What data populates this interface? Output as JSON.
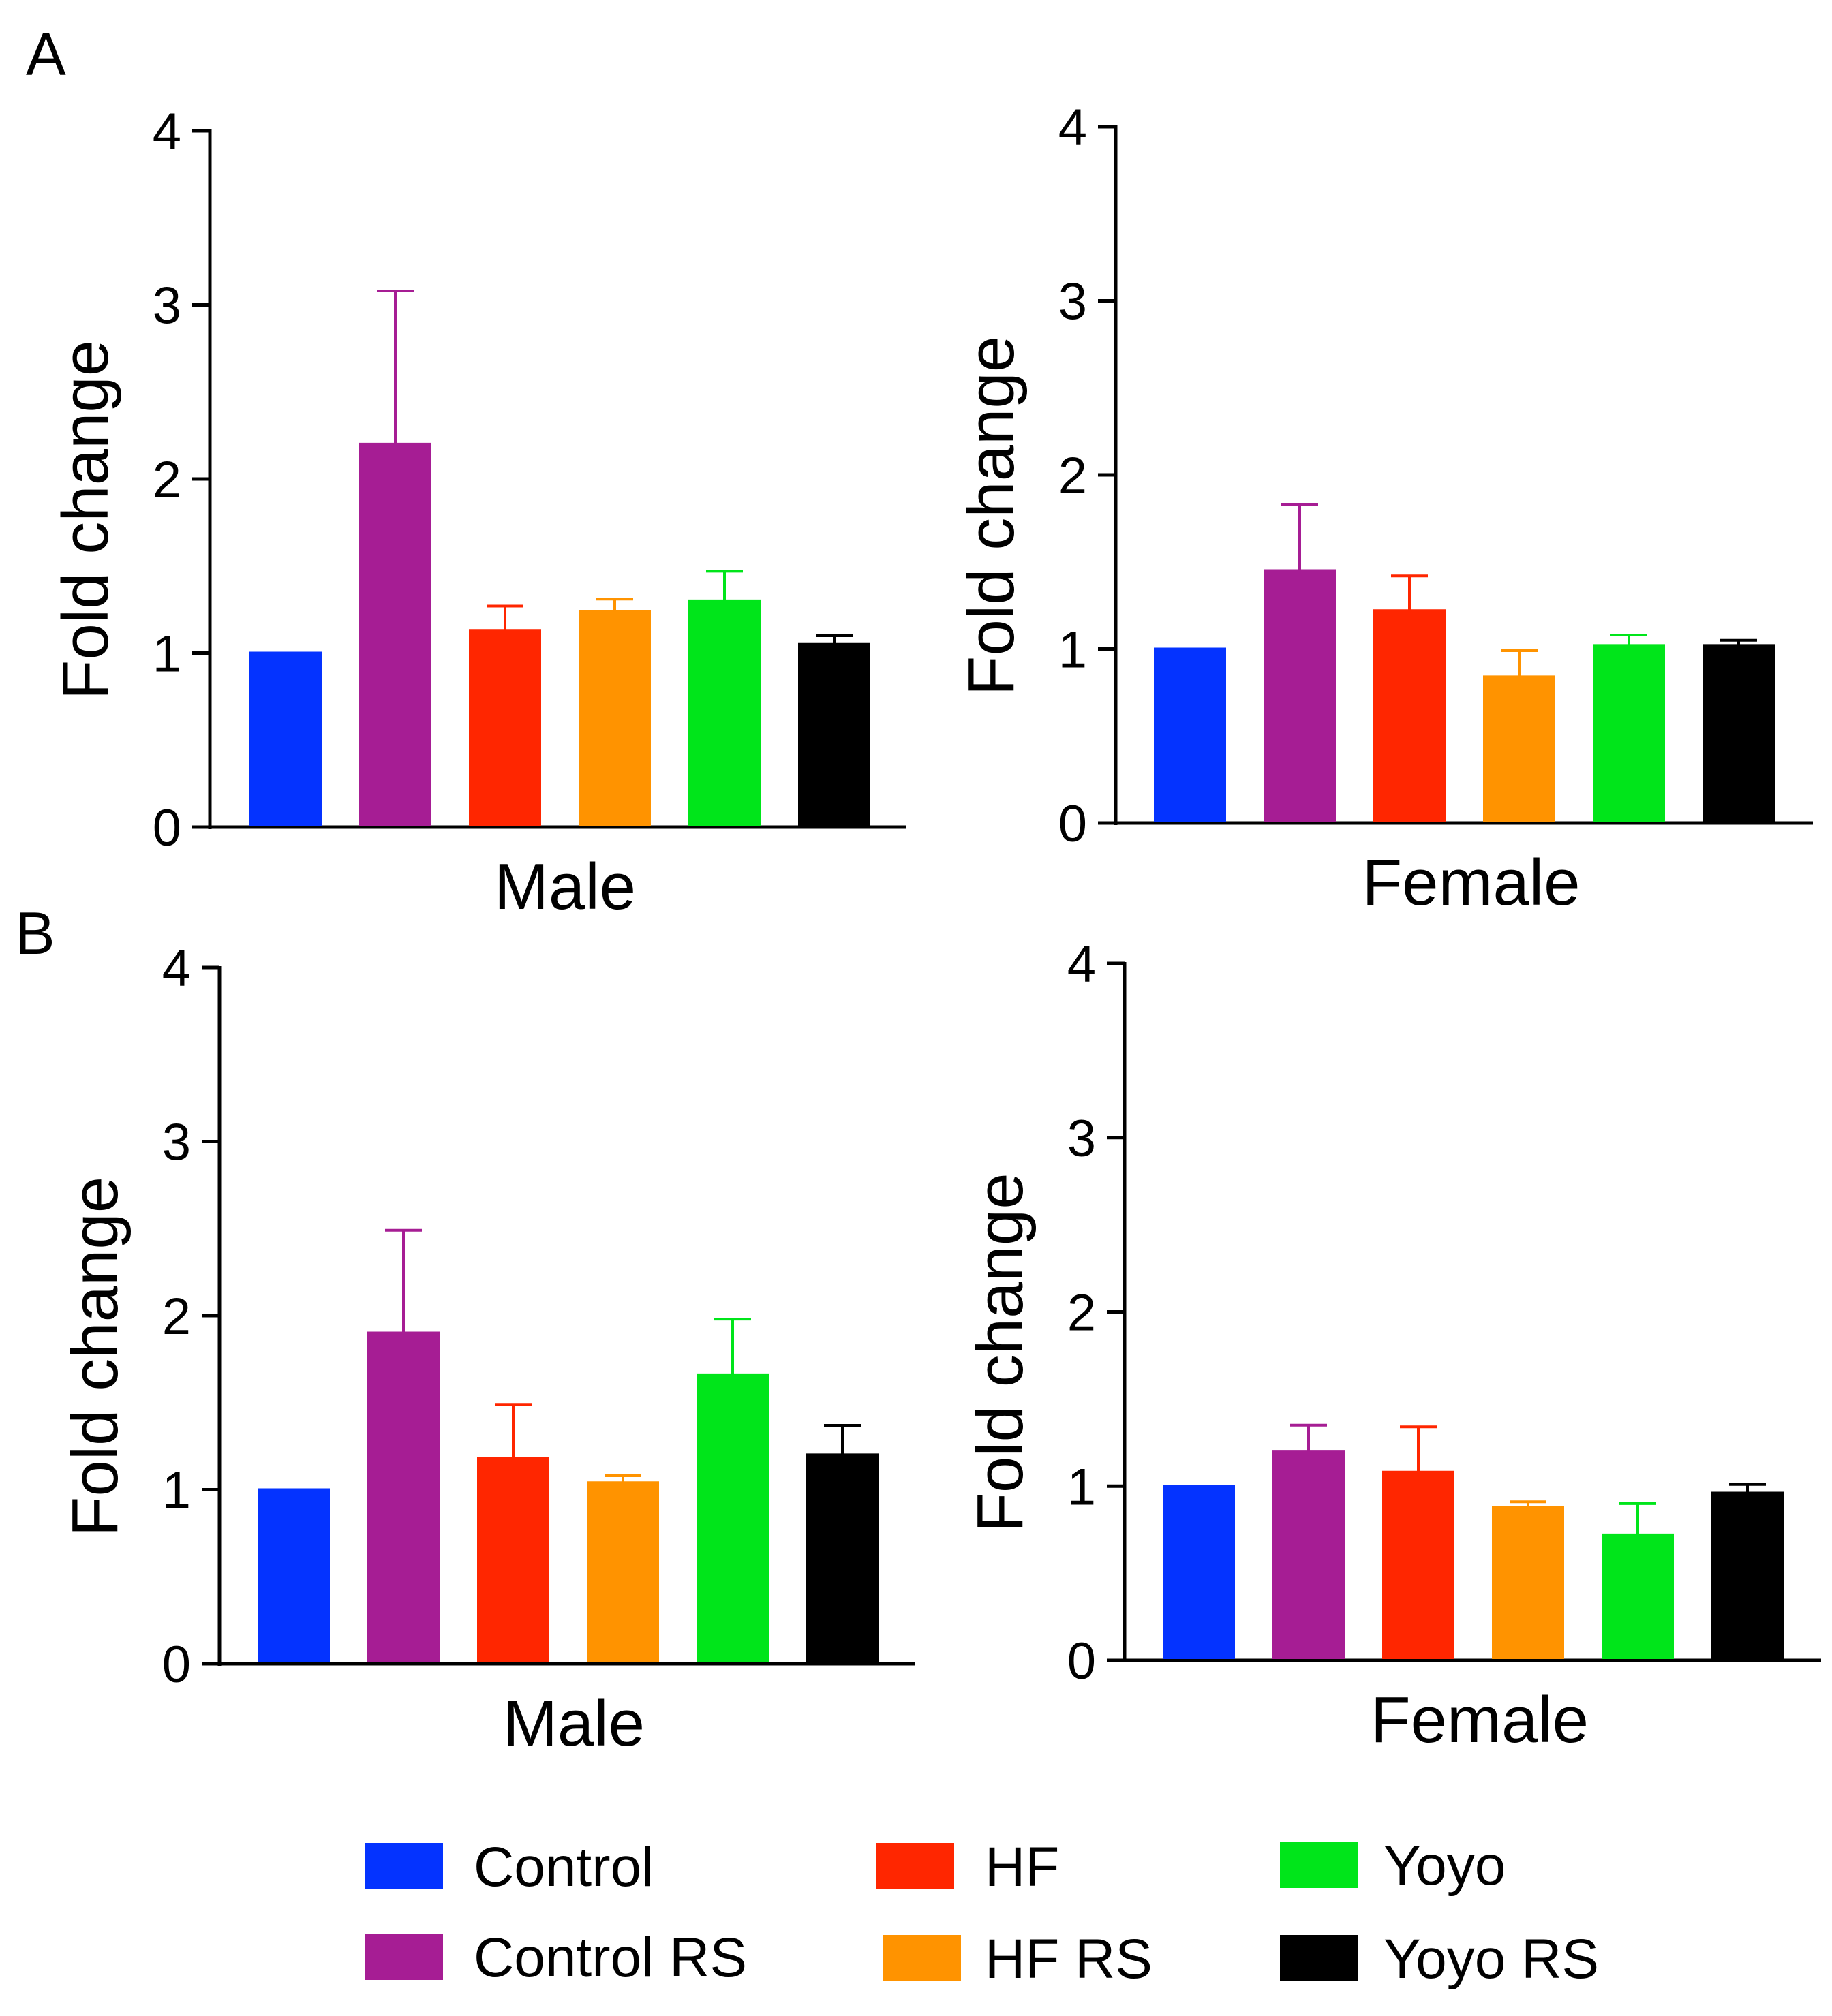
{
  "panels": {
    "a": {
      "letter": "A"
    },
    "b": {
      "letter": "B"
    }
  },
  "chart_data": [
    {
      "type": "bar",
      "panel": "A",
      "title": "",
      "xlabel": "Male",
      "ylabel": "Fold change",
      "ylim": [
        0,
        4
      ],
      "yticks": [
        "0",
        "1",
        "2",
        "3",
        "4"
      ],
      "categories": [
        "Control",
        "Control RS",
        "HF",
        "HF RS",
        "Yoyo",
        "Yoyo RS"
      ],
      "values": [
        1.0,
        2.2,
        1.13,
        1.24,
        1.3,
        1.05
      ],
      "errors": [
        0.0,
        0.88,
        0.14,
        0.07,
        0.17,
        0.05
      ]
    },
    {
      "type": "bar",
      "panel": "A",
      "title": "",
      "xlabel": "Female",
      "ylabel": "Fold change",
      "ylim": [
        0,
        4
      ],
      "yticks": [
        "0",
        "1",
        "2",
        "3",
        "4"
      ],
      "categories": [
        "Control",
        "Control RS",
        "HF",
        "HF RS",
        "Yoyo",
        "Yoyo RS"
      ],
      "values": [
        1.0,
        1.45,
        1.22,
        0.84,
        1.02,
        1.02
      ],
      "errors": [
        0.0,
        0.38,
        0.2,
        0.15,
        0.06,
        0.03
      ]
    },
    {
      "type": "bar",
      "panel": "B",
      "title": "",
      "xlabel": "Male",
      "ylabel": "Fold change",
      "ylim": [
        0,
        4
      ],
      "yticks": [
        "0",
        "1",
        "2",
        "3",
        "4"
      ],
      "categories": [
        "Control",
        "Control RS",
        "HF",
        "HF RS",
        "Yoyo",
        "Yoyo RS"
      ],
      "values": [
        1.0,
        1.9,
        1.18,
        1.04,
        1.66,
        1.2
      ],
      "errors": [
        0.0,
        0.59,
        0.31,
        0.04,
        0.32,
        0.17
      ]
    },
    {
      "type": "bar",
      "panel": "B",
      "title": "",
      "xlabel": "Female",
      "ylabel": "Fold change",
      "ylim": [
        0,
        4
      ],
      "yticks": [
        "0",
        "1",
        "2",
        "3",
        "4"
      ],
      "categories": [
        "Control",
        "Control RS",
        "HF",
        "HF RS",
        "Yoyo",
        "Yoyo RS"
      ],
      "values": [
        1.0,
        1.2,
        1.08,
        0.88,
        0.72,
        0.96
      ],
      "errors": [
        0.0,
        0.15,
        0.26,
        0.03,
        0.18,
        0.05
      ]
    }
  ],
  "legend": {
    "items": [
      {
        "label": "Control",
        "color": "#0433ff"
      },
      {
        "label": "Control RS",
        "color": "#a61d94"
      },
      {
        "label": "HF",
        "color": "#ff2600"
      },
      {
        "label": "HF RS",
        "color": "#ff9300"
      },
      {
        "label": "Yoyo",
        "color": "#00e51a"
      },
      {
        "label": "Yoyo RS",
        "color": "#000000"
      }
    ]
  }
}
